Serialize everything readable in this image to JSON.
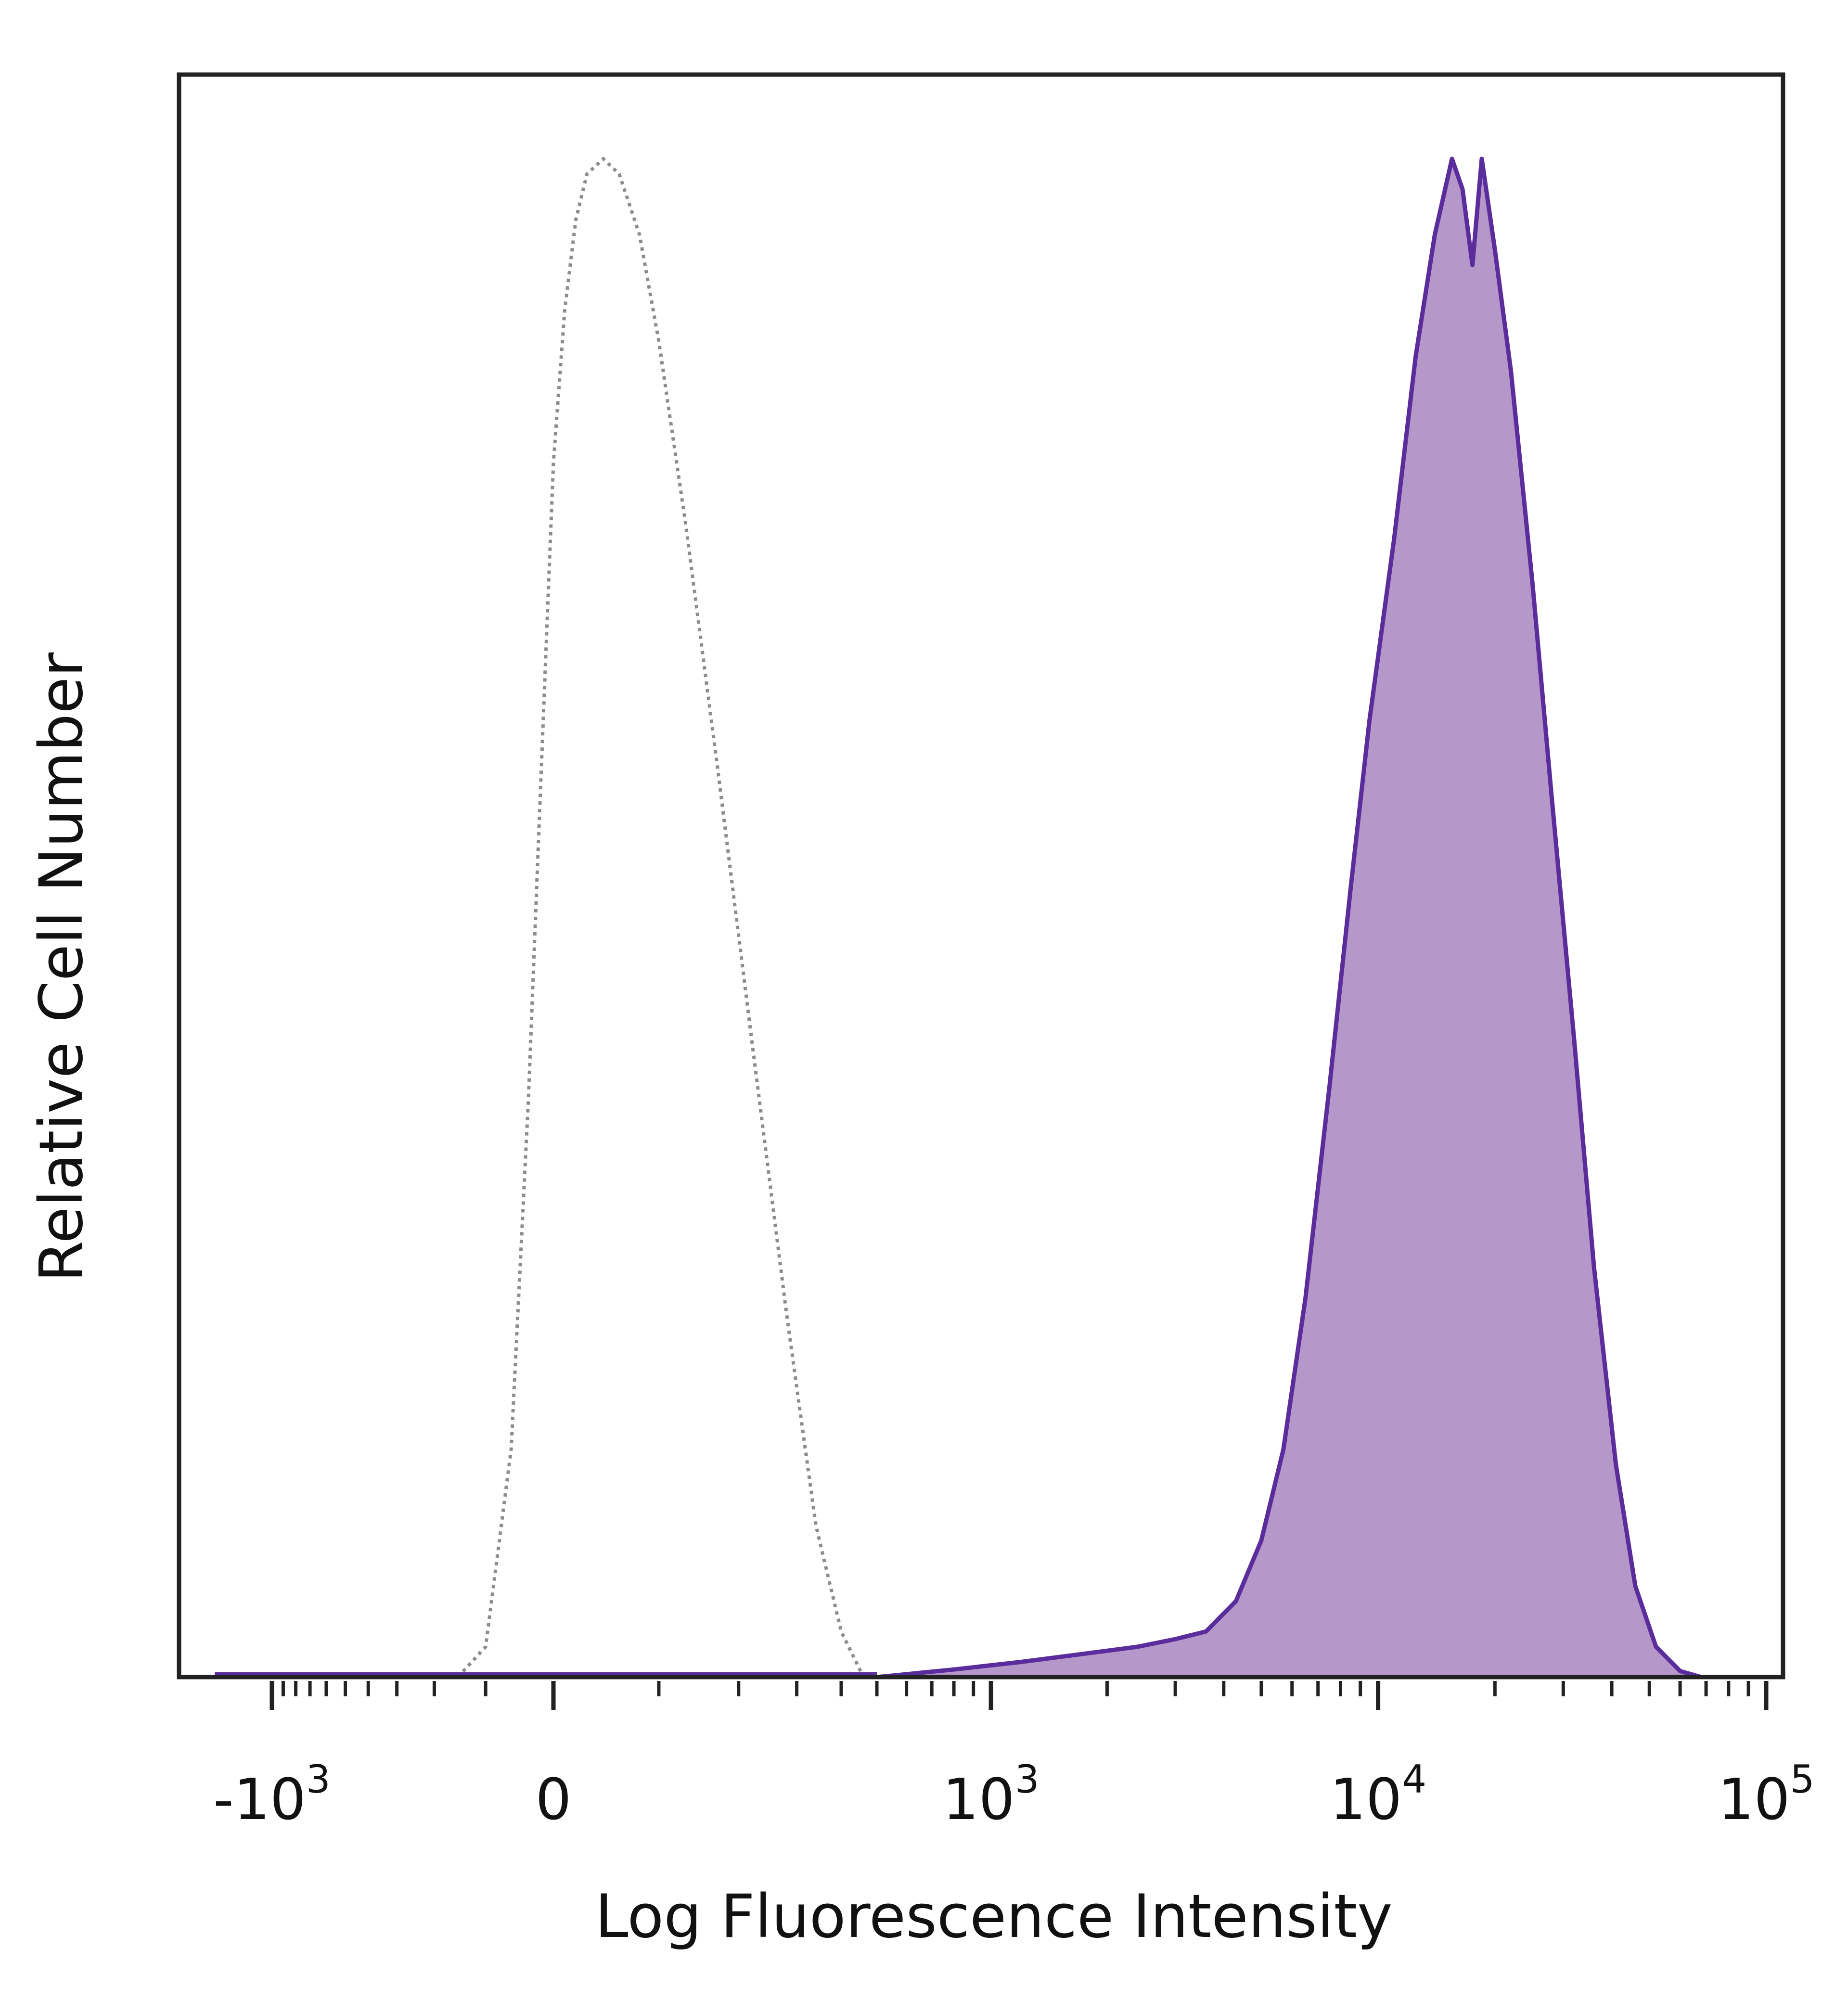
{
  "chart_data": {
    "type": "area",
    "xlabel": "Log Fluorescence Intensity",
    "ylabel": "Relative Cell Number",
    "x_scale": "biexponential",
    "xlim": [
      -1800,
      200000
    ],
    "ylim": [
      0,
      1.05
    ],
    "grid": false,
    "x_ticks": [
      {
        "value": -1000,
        "base": "-10",
        "exp": "3"
      },
      {
        "value": 0,
        "base": "0",
        "exp": ""
      },
      {
        "value": 1000,
        "base": "10",
        "exp": "3"
      },
      {
        "value": 10000,
        "base": "10",
        "exp": "4"
      },
      {
        "value": 100000,
        "base": "10",
        "exp": "5"
      }
    ],
    "series": [
      {
        "style": "dotted-outline",
        "color": "#8c8c8c",
        "points": [
          [
            -150,
            0
          ],
          [
            -100,
            0.02
          ],
          [
            -60,
            0.15
          ],
          [
            -35,
            0.38
          ],
          [
            -15,
            0.62
          ],
          [
            0,
            0.8
          ],
          [
            10,
            0.9
          ],
          [
            20,
            0.96
          ],
          [
            30,
            0.99
          ],
          [
            45,
            1.0
          ],
          [
            60,
            0.99
          ],
          [
            80,
            0.95
          ],
          [
            100,
            0.88
          ],
          [
            130,
            0.76
          ],
          [
            170,
            0.6
          ],
          [
            220,
            0.42
          ],
          [
            280,
            0.24
          ],
          [
            340,
            0.1
          ],
          [
            400,
            0.03
          ],
          [
            460,
            0
          ]
        ]
      },
      {
        "style": "filled",
        "color": "#5b2d9c",
        "fill": "#b697c9",
        "points": [
          [
            500,
            0
          ],
          [
            800,
            0.005
          ],
          [
            1200,
            0.01
          ],
          [
            1700,
            0.015
          ],
          [
            2400,
            0.02
          ],
          [
            3000,
            0.025
          ],
          [
            3600,
            0.03
          ],
          [
            4300,
            0.05
          ],
          [
            5000,
            0.09
          ],
          [
            5700,
            0.15
          ],
          [
            6500,
            0.25
          ],
          [
            7500,
            0.39
          ],
          [
            8500,
            0.52
          ],
          [
            9500,
            0.63
          ],
          [
            11000,
            0.75
          ],
          [
            12500,
            0.87
          ],
          [
            14000,
            0.95
          ],
          [
            15500,
            1.0
          ],
          [
            16500,
            0.98
          ],
          [
            17500,
            0.93
          ],
          [
            18500,
            1.0
          ],
          [
            20000,
            0.94
          ],
          [
            22000,
            0.86
          ],
          [
            25000,
            0.72
          ],
          [
            28000,
            0.58
          ],
          [
            32000,
            0.42
          ],
          [
            36000,
            0.27
          ],
          [
            41000,
            0.14
          ],
          [
            46000,
            0.06
          ],
          [
            52000,
            0.02
          ],
          [
            60000,
            0.004
          ],
          [
            68000,
            0
          ]
        ]
      }
    ]
  }
}
